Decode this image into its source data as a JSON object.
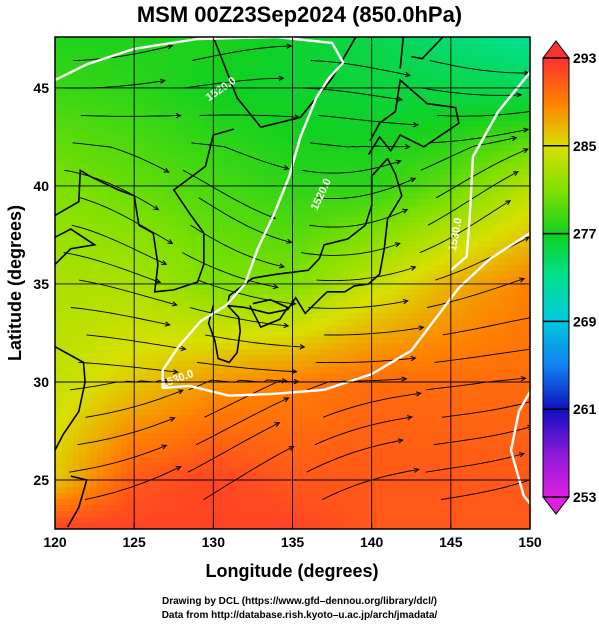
{
  "chart_data": {
    "type": "heatmap",
    "title": "MSM 00Z23Sep2024 (850.0hPa)",
    "xlabel": "Longitude (degrees)",
    "ylabel": "Latitude  (degrees)",
    "xlim": [
      120,
      150
    ],
    "ylim": [
      22.5,
      47.6
    ],
    "xticks": [
      120,
      125,
      130,
      135,
      140,
      145,
      150
    ],
    "yticks": [
      25,
      30,
      35,
      40,
      45
    ],
    "grid": true,
    "colorbar": {
      "ticks": [
        293,
        285,
        277,
        269,
        261,
        253
      ],
      "min": 253,
      "max": 293,
      "stops": [
        {
          "value": 253,
          "color": "#e020e0"
        },
        {
          "value": 257,
          "color": "#8a1ad8"
        },
        {
          "value": 261,
          "color": "#1010c0"
        },
        {
          "value": 265,
          "color": "#1080f0"
        },
        {
          "value": 269,
          "color": "#00c8e0"
        },
        {
          "value": 273,
          "color": "#00e090"
        },
        {
          "value": 277,
          "color": "#10d020"
        },
        {
          "value": 281,
          "color": "#80e000"
        },
        {
          "value": 285,
          "color": "#d8e000"
        },
        {
          "value": 289,
          "color": "#ff8000"
        },
        {
          "value": 293,
          "color": "#ff3030"
        }
      ]
    },
    "field": {
      "lon": [
        120,
        125,
        130,
        135,
        140,
        145,
        150
      ],
      "lat": [
        47.5,
        45,
        40,
        35,
        30,
        25,
        22.6
      ],
      "values": [
        [
          277.5,
          277.5,
          277.5,
          276.5,
          275.5,
          274,
          273
        ],
        [
          278.5,
          278,
          277,
          276.5,
          276,
          275.5,
          275
        ],
        [
          281,
          280,
          279,
          278,
          278,
          280,
          283.5
        ],
        [
          283,
          283,
          281,
          281,
          284,
          287,
          289
        ],
        [
          284,
          286,
          288,
          289,
          290,
          290,
          290
        ],
        [
          286,
          291,
          292,
          291,
          291,
          291,
          291
        ],
        [
          292,
          292,
          292,
          292,
          291,
          291,
          291
        ]
      ]
    },
    "contour_labels": [
      "1530.0",
      "1520.0",
      "1530.0",
      "1520.0"
    ]
  },
  "credits": {
    "line1": "Drawing by DCL (https://www.gfd–dennou.org/library/dcl/)",
    "line2": "Data from http://database.rish.kyoto–u.ac.jp/arch/jmadata/"
  },
  "colors": {
    "coast": "#000000",
    "contour": "#ffffff",
    "stream": "#000000",
    "grid": "#000000"
  }
}
